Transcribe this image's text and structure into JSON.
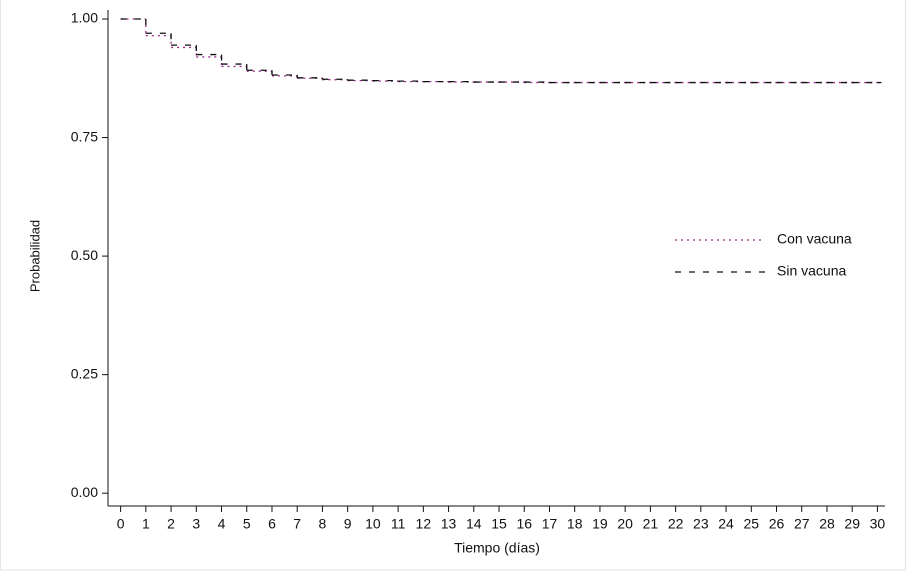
{
  "chart_data": {
    "type": "step",
    "x_label": "Tiempo (días)",
    "y_label": "Probabilidad",
    "x": [
      0,
      1,
      2,
      3,
      4,
      5,
      6,
      7,
      8,
      9,
      10,
      11,
      12,
      13,
      14,
      15,
      16,
      17,
      18,
      19,
      20,
      21,
      22,
      23,
      24,
      25,
      26,
      27,
      28,
      29,
      30
    ],
    "series": [
      {
        "name": "Con vacuna",
        "color": "#9b2a8f",
        "dash": "2,4",
        "values": [
          1.0,
          0.965,
          0.94,
          0.92,
          0.9,
          0.89,
          0.88,
          0.875,
          0.872,
          0.87,
          0.869,
          0.868,
          0.868,
          0.867,
          0.867,
          0.867,
          0.866,
          0.866,
          0.866,
          0.866,
          0.866,
          0.866,
          0.866,
          0.866,
          0.866,
          0.866,
          0.866,
          0.866,
          0.866,
          0.866,
          0.866
        ]
      },
      {
        "name": "Sin vacuna",
        "color": "#111111",
        "dash": "6,8",
        "values": [
          1.0,
          0.97,
          0.945,
          0.925,
          0.905,
          0.892,
          0.882,
          0.876,
          0.873,
          0.871,
          0.87,
          0.869,
          0.868,
          0.868,
          0.867,
          0.867,
          0.867,
          0.866,
          0.866,
          0.866,
          0.866,
          0.866,
          0.866,
          0.866,
          0.866,
          0.866,
          0.866,
          0.866,
          0.866,
          0.866,
          0.866
        ]
      }
    ],
    "xlim": [
      -0.5,
      30.3
    ],
    "ylim": [
      -0.027,
      1.019
    ],
    "xticks": [
      0,
      1,
      2,
      3,
      4,
      5,
      6,
      7,
      8,
      9,
      10,
      11,
      12,
      13,
      14,
      15,
      16,
      17,
      18,
      19,
      20,
      21,
      22,
      23,
      24,
      25,
      26,
      27,
      28,
      29,
      30
    ],
    "yticks": [
      {
        "value": 0,
        "label": "0.00"
      },
      0.25,
      {
        "value": 0.5,
        "label": "0.50"
      },
      0.75,
      {
        "value": 1,
        "label": "1.00"
      }
    ],
    "grid": false,
    "legend": "right"
  }
}
